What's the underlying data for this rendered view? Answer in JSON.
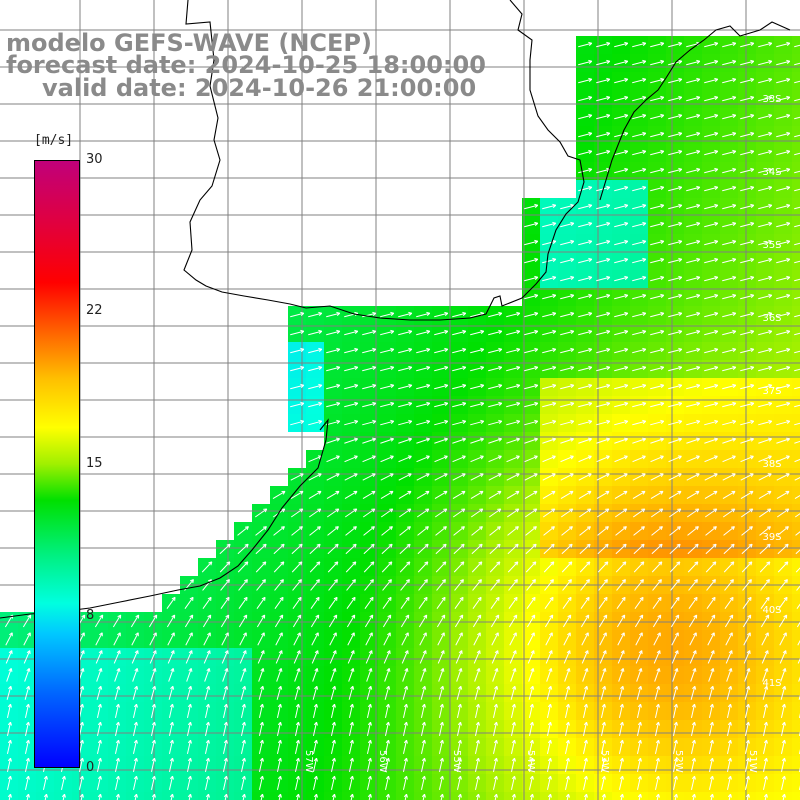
{
  "title": {
    "line1": "modelo GEFS-WAVE (NCEP)",
    "line2": "forecast date: 2024-10-25 18:00:00",
    "line3": "valid date: 2024-10-26 21:00:00"
  },
  "colorbar": {
    "unit": "[m/s]",
    "ticks": [
      "30",
      "22",
      "15",
      "8",
      "0"
    ],
    "colors": [
      "#0000ff",
      "#00c8ff",
      "#00e000",
      "#ffff00",
      "#ff0000",
      "#c0007a"
    ]
  },
  "map": {
    "lat_labels": [
      "33S",
      "34S",
      "35S",
      "36S",
      "37S",
      "38S",
      "39S",
      "40S",
      "41S"
    ],
    "lon_labels": [
      "57W",
      "56W",
      "55W",
      "54W",
      "53W",
      "52W",
      "51W"
    ],
    "sea_color_base": "#00f0d0",
    "land_color": "#ffffff",
    "grid_color": "#808080"
  }
}
